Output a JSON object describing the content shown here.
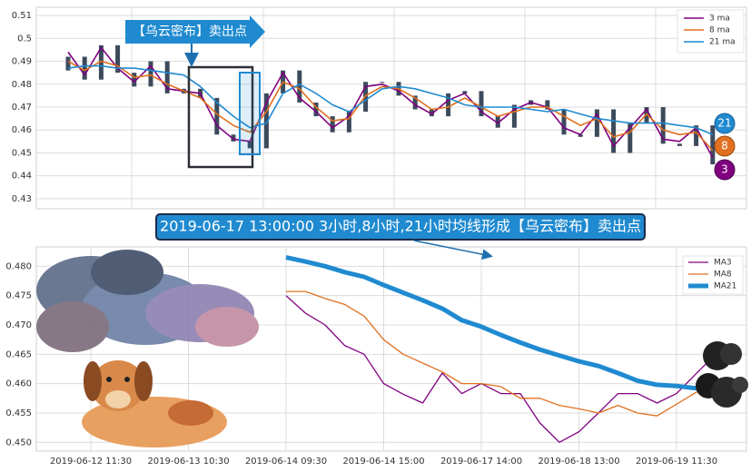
{
  "chart_data": [
    {
      "type": "candlestick",
      "open": [
        0.486,
        0.492,
        0.482,
        0.497,
        0.485,
        0.479,
        0.49,
        0.476,
        0.478,
        0.474,
        0.458,
        0.455,
        0.452,
        0.476,
        0.486,
        0.472,
        0.466,
        0.459,
        0.468,
        0.481,
        0.481,
        0.475,
        0.469,
        0.466,
        0.476,
        0.477,
        0.466,
        0.461,
        0.471,
        0.473,
        0.469,
        0.458,
        0.457,
        0.469,
        0.45,
        0.463,
        0.47,
        0.454,
        0.453,
        0.462
      ],
      "close": [
        0.492,
        0.482,
        0.497,
        0.485,
        0.479,
        0.49,
        0.476,
        0.478,
        0.474,
        0.458,
        0.455,
        0.452,
        0.476,
        0.486,
        0.472,
        0.466,
        0.459,
        0.468,
        0.481,
        0.481,
        0.475,
        0.469,
        0.466,
        0.476,
        0.477,
        0.466,
        0.461,
        0.471,
        0.473,
        0.469,
        0.458,
        0.457,
        0.469,
        0.45,
        0.463,
        0.47,
        0.454,
        0.453,
        0.462,
        0.445
      ],
      "candle_color": "#3c4a5c",
      "series": [
        {
          "name": "3 ma",
          "color": "#800080",
          "values": [
            0.494,
            0.484,
            0.496,
            0.487,
            0.481,
            0.488,
            0.478,
            0.477,
            0.476,
            0.462,
            0.456,
            0.455,
            0.472,
            0.485,
            0.474,
            0.468,
            0.461,
            0.466,
            0.479,
            0.48,
            0.477,
            0.471,
            0.467,
            0.473,
            0.476,
            0.468,
            0.463,
            0.469,
            0.472,
            0.47,
            0.461,
            0.458,
            0.467,
            0.453,
            0.461,
            0.469,
            0.456,
            0.455,
            0.461,
            0.448
          ]
        },
        {
          "name": "8 ma",
          "color": "#e07020",
          "values": [
            0.49,
            0.486,
            0.49,
            0.488,
            0.483,
            0.484,
            0.48,
            0.477,
            0.474,
            0.467,
            0.462,
            0.459,
            0.468,
            0.481,
            0.478,
            0.47,
            0.464,
            0.465,
            0.475,
            0.479,
            0.478,
            0.474,
            0.469,
            0.47,
            0.474,
            0.47,
            0.466,
            0.468,
            0.47,
            0.47,
            0.466,
            0.462,
            0.465,
            0.457,
            0.459,
            0.467,
            0.46,
            0.458,
            0.459,
            0.451
          ]
        },
        {
          "name": "21 ma",
          "color": "#1f8ad0",
          "values": [
            0.487,
            0.488,
            0.488,
            0.487,
            0.487,
            0.486,
            0.485,
            0.484,
            0.479,
            0.472,
            0.466,
            0.461,
            0.463,
            0.476,
            0.48,
            0.476,
            0.471,
            0.468,
            0.473,
            0.478,
            0.479,
            0.478,
            0.476,
            0.474,
            0.471,
            0.47,
            0.47,
            0.47,
            0.469,
            0.468,
            0.469,
            0.467,
            0.465,
            0.464,
            0.463,
            0.463,
            0.463,
            0.462,
            0.461,
            0.458
          ]
        }
      ],
      "ylim": [
        0.4256,
        0.5136
      ],
      "yticks": [
        0.43,
        0.44,
        0.45,
        0.46,
        0.47,
        0.48,
        0.49,
        0.5,
        0.51
      ],
      "annotation": "【乌云密布】卖出点",
      "badges": [
        "21",
        "8",
        "3"
      ]
    },
    {
      "type": "line",
      "title": "2019-06-17 13:00:00 3小时,8小时,21小时均线形成【乌云密布】卖出点",
      "categories": [
        "2019-06-12 11:30",
        null,
        null,
        null,
        null,
        "2019-06-13 10:30",
        null,
        null,
        null,
        null,
        "2019-06-14 09:30",
        null,
        null,
        null,
        null,
        "2019-06-14 15:00",
        null,
        null,
        null,
        null,
        "2019-06-17 14:00",
        null,
        null,
        null,
        null,
        "2019-06-18 13:00",
        null,
        null,
        null,
        null,
        "2019-06-19 11:30",
        null,
        null
      ],
      "series": [
        {
          "name": "MA3",
          "color": "#800080",
          "width": 1.3,
          "values": [
            null,
            null,
            null,
            null,
            null,
            null,
            null,
            null,
            null,
            null,
            0.475,
            0.472,
            0.47,
            0.4665,
            0.465,
            0.46,
            0.4582,
            0.4567,
            0.4618,
            0.4583,
            0.46,
            0.4583,
            0.4583,
            0.4533,
            0.45,
            0.4518,
            0.455,
            0.4583,
            0.4583,
            0.4567,
            0.4583,
            0.4617,
            0.465
          ]
        },
        {
          "name": "MA8",
          "color": "#e07020",
          "width": 1.3,
          "values": [
            null,
            null,
            null,
            null,
            null,
            null,
            null,
            null,
            null,
            null,
            0.4757,
            0.4757,
            0.4745,
            0.4735,
            0.4715,
            0.4675,
            0.465,
            0.4635,
            0.462,
            0.46,
            0.46,
            0.4595,
            0.4575,
            0.4575,
            0.4563,
            0.4557,
            0.455,
            0.4563,
            0.455,
            0.4545,
            0.4565,
            0.4585,
            0.46
          ]
        },
        {
          "name": "MA21",
          "color": "#1f8ad0",
          "width": 5,
          "values": [
            null,
            null,
            null,
            null,
            null,
            null,
            null,
            null,
            null,
            null,
            0.4815,
            0.4808,
            0.48,
            0.479,
            0.4782,
            0.4768,
            0.4755,
            0.4742,
            0.4728,
            0.4708,
            0.4697,
            0.4683,
            0.467,
            0.4658,
            0.4648,
            0.4638,
            0.463,
            0.4618,
            0.4605,
            0.4598,
            0.4596,
            0.4592,
            0.459
          ]
        }
      ],
      "ylim": [
        0.4485,
        0.4833
      ],
      "yticks": [
        {
          "value": 0.45,
          "label": "0.450"
        },
        {
          "value": 0.455,
          "label": "0.455"
        },
        {
          "value": 0.46,
          "label": "0.460"
        },
        {
          "value": 0.465,
          "label": "0.465"
        },
        {
          "value": 0.47,
          "label": "0.470"
        },
        {
          "value": 0.475,
          "label": "0.475"
        },
        {
          "value": 0.48,
          "label": "0.480"
        }
      ]
    }
  ]
}
